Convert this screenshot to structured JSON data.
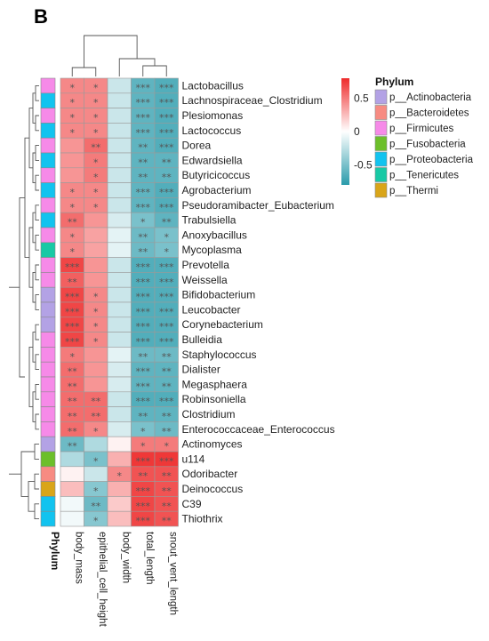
{
  "panel_letter": "B",
  "chart_data": {
    "type": "heatmap",
    "columns": [
      "body_mass",
      "epithelial_cell_height",
      "body_width",
      "total_length",
      "snout_vent_length"
    ],
    "annotation_column_label": "Phylum",
    "colorbar": {
      "range": [
        -0.8,
        0.8
      ],
      "ticks": [
        0.5,
        0,
        -0.5
      ],
      "tick_labels": [
        "0.5",
        "0",
        "-0.5"
      ],
      "colors": [
        "#2a9bab",
        "#ffffff",
        "#ee2b2b"
      ]
    },
    "phylum_legend": {
      "title": "Phylum",
      "items": [
        {
          "label": "p__Actinobacteria",
          "color": "#b3a2e5"
        },
        {
          "label": "p__Bacteroidetes",
          "color": "#f78b82"
        },
        {
          "label": "p__Firmicutes",
          "color": "#f68ae8"
        },
        {
          "label": "p__Fusobacteria",
          "color": "#6cbf2a"
        },
        {
          "label": "p__Proteobacteria",
          "color": "#12c3ef"
        },
        {
          "label": "p__Tenericutes",
          "color": "#18c9a5"
        },
        {
          "label": "p__Thermi",
          "color": "#d9a519"
        }
      ]
    },
    "rows": [
      {
        "name": "Lactobacillus",
        "phylum": "p__Firmicutes",
        "values": [
          0.45,
          0.45,
          -0.2,
          -0.6,
          -0.65
        ],
        "sig": [
          "*",
          "*",
          "",
          "***",
          "***"
        ]
      },
      {
        "name": "Lachnospiraceae_Clostridium",
        "phylum": "p__Proteobacteria",
        "values": [
          0.45,
          0.45,
          -0.2,
          -0.6,
          -0.65
        ],
        "sig": [
          "*",
          "*",
          "",
          "***",
          "***"
        ]
      },
      {
        "name": "Plesiomonas",
        "phylum": "p__Firmicutes",
        "values": [
          0.45,
          0.45,
          -0.2,
          -0.6,
          -0.65
        ],
        "sig": [
          "*",
          "*",
          "",
          "***",
          "***"
        ]
      },
      {
        "name": "Lactococcus",
        "phylum": "p__Proteobacteria",
        "values": [
          0.45,
          0.45,
          -0.2,
          -0.6,
          -0.65
        ],
        "sig": [
          "*",
          "*",
          "",
          "***",
          "***"
        ]
      },
      {
        "name": "Dorea",
        "phylum": "p__Firmicutes",
        "values": [
          0.4,
          0.55,
          -0.2,
          -0.6,
          -0.65
        ],
        "sig": [
          "",
          "**",
          "",
          "**",
          "***"
        ]
      },
      {
        "name": "Edwardsiella",
        "phylum": "p__Proteobacteria",
        "values": [
          0.4,
          0.5,
          -0.2,
          -0.6,
          -0.6
        ],
        "sig": [
          "",
          "*",
          "",
          "**",
          "**"
        ]
      },
      {
        "name": "Butyricicoccus",
        "phylum": "p__Firmicutes",
        "values": [
          0.4,
          0.5,
          -0.2,
          -0.6,
          -0.6
        ],
        "sig": [
          "",
          "*",
          "",
          "**",
          "**"
        ]
      },
      {
        "name": "Agrobacterium",
        "phylum": "p__Proteobacteria",
        "values": [
          0.45,
          0.45,
          -0.2,
          -0.6,
          -0.65
        ],
        "sig": [
          "*",
          "*",
          "",
          "***",
          "***"
        ]
      },
      {
        "name": "Pseudoramibacter_Eubacterium",
        "phylum": "p__Firmicutes",
        "values": [
          0.45,
          0.45,
          -0.2,
          -0.6,
          -0.65
        ],
        "sig": [
          "*",
          "*",
          "",
          "***",
          "***"
        ]
      },
      {
        "name": "Trabulsiella",
        "phylum": "p__Proteobacteria",
        "values": [
          0.55,
          0.4,
          -0.15,
          -0.5,
          -0.6
        ],
        "sig": [
          "**",
          "",
          "",
          "*",
          "**"
        ]
      },
      {
        "name": "Anoxybacillus",
        "phylum": "p__Firmicutes",
        "values": [
          0.45,
          0.35,
          -0.1,
          -0.55,
          -0.5
        ],
        "sig": [
          "*",
          "",
          "",
          "**",
          "*"
        ]
      },
      {
        "name": "Mycoplasma",
        "phylum": "p__Tenericutes",
        "values": [
          0.45,
          0.35,
          -0.1,
          -0.55,
          -0.5
        ],
        "sig": [
          "*",
          "",
          "",
          "**",
          "*"
        ]
      },
      {
        "name": "Prevotella",
        "phylum": "p__Firmicutes",
        "values": [
          0.7,
          0.4,
          -0.2,
          -0.65,
          -0.65
        ],
        "sig": [
          "***",
          "",
          "",
          "***",
          "***"
        ]
      },
      {
        "name": "Weissella",
        "phylum": "p__Firmicutes",
        "values": [
          0.6,
          0.4,
          -0.2,
          -0.65,
          -0.65
        ],
        "sig": [
          "**",
          "",
          "",
          "***",
          "***"
        ]
      },
      {
        "name": "Bifidobacterium",
        "phylum": "p__Actinobacteria",
        "values": [
          0.7,
          0.45,
          -0.2,
          -0.65,
          -0.65
        ],
        "sig": [
          "***",
          "*",
          "",
          "***",
          "***"
        ]
      },
      {
        "name": "Leucobacter",
        "phylum": "p__Actinobacteria",
        "values": [
          0.7,
          0.45,
          -0.2,
          -0.65,
          -0.65
        ],
        "sig": [
          "***",
          "*",
          "",
          "***",
          "***"
        ]
      },
      {
        "name": "Corynebacterium",
        "phylum": "p__Actinobacteria",
        "values": [
          0.7,
          0.45,
          -0.2,
          -0.65,
          -0.65
        ],
        "sig": [
          "***",
          "*",
          "",
          "***",
          "***"
        ]
      },
      {
        "name": "Bulleidia",
        "phylum": "p__Firmicutes",
        "values": [
          0.7,
          0.45,
          -0.2,
          -0.65,
          -0.65
        ],
        "sig": [
          "***",
          "*",
          "",
          "***",
          "***"
        ]
      },
      {
        "name": "Staphylococcus",
        "phylum": "p__Firmicutes",
        "values": [
          0.5,
          0.4,
          -0.1,
          -0.55,
          -0.55
        ],
        "sig": [
          "*",
          "",
          "",
          "**",
          "**"
        ]
      },
      {
        "name": "Dialister",
        "phylum": "p__Firmicutes",
        "values": [
          0.55,
          0.4,
          -0.15,
          -0.6,
          -0.6
        ],
        "sig": [
          "**",
          "",
          "",
          "***",
          "**"
        ]
      },
      {
        "name": "Megasphaera",
        "phylum": "p__Firmicutes",
        "values": [
          0.55,
          0.4,
          -0.15,
          -0.6,
          -0.6
        ],
        "sig": [
          "**",
          "",
          "",
          "***",
          "**"
        ]
      },
      {
        "name": "Robinsoniella",
        "phylum": "p__Firmicutes",
        "values": [
          0.55,
          0.55,
          -0.2,
          -0.65,
          -0.65
        ],
        "sig": [
          "**",
          "**",
          "",
          "***",
          "***"
        ]
      },
      {
        "name": "Clostridium",
        "phylum": "p__Firmicutes",
        "values": [
          0.55,
          0.55,
          -0.2,
          -0.6,
          -0.6
        ],
        "sig": [
          "**",
          "**",
          "",
          "**",
          "**"
        ]
      },
      {
        "name": "Enterococcaceae_Enterococcus",
        "phylum": "p__Firmicutes",
        "values": [
          0.55,
          0.45,
          -0.15,
          -0.5,
          -0.55
        ],
        "sig": [
          "**",
          "*",
          "",
          "*",
          "**"
        ]
      },
      {
        "name": "Actinomyces",
        "phylum": "p__Actinobacteria",
        "values": [
          -0.55,
          -0.3,
          0.05,
          0.5,
          0.5
        ],
        "sig": [
          "**",
          "",
          "",
          "*",
          "*"
        ]
      },
      {
        "name": "u114",
        "phylum": "p__Fusobacteria",
        "values": [
          -0.3,
          -0.5,
          0.3,
          0.75,
          0.75
        ],
        "sig": [
          "",
          "*",
          "",
          "***",
          "***"
        ]
      },
      {
        "name": "Odoribacter",
        "phylum": "p__Bacteroidetes",
        "values": [
          0.05,
          -0.2,
          0.45,
          0.65,
          0.65
        ],
        "sig": [
          "",
          "",
          "*",
          "**",
          "**"
        ]
      },
      {
        "name": "Deinococcus",
        "phylum": "p__Thermi",
        "values": [
          0.25,
          -0.45,
          0.3,
          0.7,
          0.65
        ],
        "sig": [
          "",
          "*",
          "",
          "***",
          "**"
        ]
      },
      {
        "name": "C39",
        "phylum": "p__Proteobacteria",
        "values": [
          -0.05,
          -0.55,
          0.2,
          0.7,
          0.65
        ],
        "sig": [
          "",
          "**",
          "",
          "***",
          "**"
        ]
      },
      {
        "name": "Thiothrix",
        "phylum": "p__Proteobacteria",
        "values": [
          -0.05,
          -0.45,
          0.25,
          0.7,
          0.65
        ],
        "sig": [
          "",
          "*",
          "",
          "***",
          "**"
        ]
      }
    ]
  }
}
